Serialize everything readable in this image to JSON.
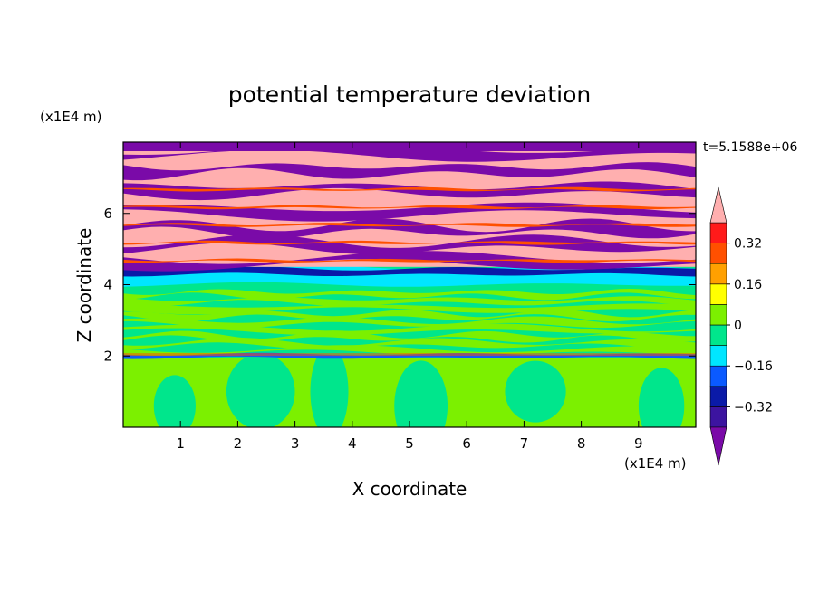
{
  "chart_data": {
    "type": "heatmap",
    "title": "potential temperature deviation",
    "xlabel": "X coordinate",
    "ylabel": "Z coordinate",
    "x_unit": "(x1E4 m)",
    "y_unit": "(x1E4 m)",
    "time_label": "t=5.1588e+06",
    "xlim": [
      0,
      10
    ],
    "ylim": [
      0,
      8
    ],
    "x_ticks": [
      1,
      2,
      3,
      4,
      5,
      6,
      7,
      8,
      9
    ],
    "y_ticks": [
      2,
      4,
      6
    ],
    "x_tick_labels": [
      "1",
      "2",
      "3",
      "4",
      "5",
      "6",
      "7",
      "8",
      "9"
    ],
    "y_tick_labels": [
      "2",
      "4",
      "6"
    ],
    "colorbar": {
      "levels": [
        -0.4,
        -0.32,
        -0.24,
        -0.16,
        -0.08,
        0,
        0.08,
        0.16,
        0.24,
        0.32,
        0.4
      ],
      "tick_values": [
        -0.32,
        -0.16,
        0,
        0.16,
        0.32
      ],
      "tick_labels": [
        "−0.32",
        "−0.16",
        "0",
        "0.16",
        "0.32"
      ],
      "colors": [
        "#7a0aa8",
        "#3c14a0",
        "#0a1aa8",
        "#0a5aff",
        "#00e6ff",
        "#00e68c",
        "#7cf000",
        "#ffff00",
        "#ffa000",
        "#ff5000",
        "#ff1a1a",
        "#ffafaf"
      ]
    },
    "layers": [
      {
        "z_range": [
          0,
          1.85
        ],
        "description_colors": [
          "#7cf000",
          "#00e68c"
        ]
      },
      {
        "z_range": [
          1.85,
          2.05
        ],
        "description_colors": [
          "#0a5aff",
          "#ff5000"
        ]
      },
      {
        "z_range": [
          2.05,
          4.0
        ],
        "description_colors": [
          "#00e68c",
          "#7cf000"
        ]
      },
      {
        "z_range": [
          4.0,
          4.5
        ],
        "description_colors": [
          "#00e6ff",
          "#0a1aa8",
          "#3c14a0"
        ]
      },
      {
        "z_range": [
          4.5,
          7.9
        ],
        "description_colors": [
          "#ffafaf",
          "#7a0aa8"
        ]
      }
    ],
    "colors": {
      "background": "#ffffff",
      "axis": "#000000"
    }
  }
}
